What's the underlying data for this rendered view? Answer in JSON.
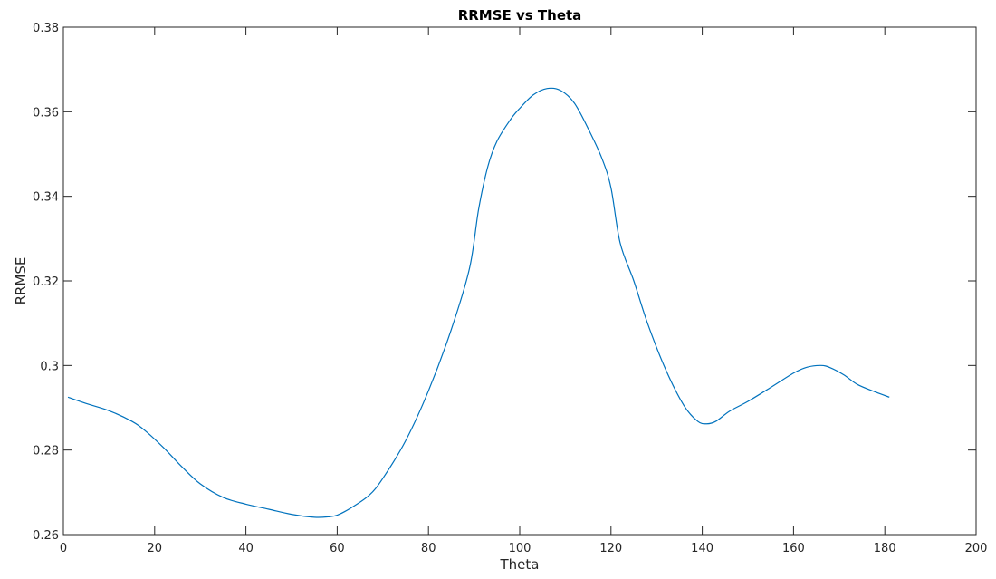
{
  "chart_data": {
    "type": "line",
    "title": "RRMSE vs Theta",
    "xlabel": "Theta",
    "ylabel": "RRMSE",
    "xlim": [
      0,
      200
    ],
    "ylim": [
      0.26,
      0.38
    ],
    "xticks": [
      0,
      20,
      40,
      60,
      80,
      100,
      120,
      140,
      160,
      180,
      200
    ],
    "xtick_labels": [
      "0",
      "20",
      "40",
      "60",
      "80",
      "100",
      "120",
      "140",
      "160",
      "180",
      "200"
    ],
    "yticks": [
      0.26,
      0.28,
      0.3,
      0.32,
      0.34,
      0.36,
      0.38
    ],
    "ytick_labels": [
      "0.26",
      "0.28",
      "0.3",
      "0.32",
      "0.34",
      "0.36",
      "0.38"
    ],
    "grid": false,
    "series": [
      {
        "color": "#0072bd",
        "x": [
          1,
          5,
          10,
          15,
          18,
          22,
          26,
          30,
          35,
          40,
          45,
          50,
          55,
          58,
          60,
          63,
          67,
          70,
          75,
          80,
          85,
          89,
          91,
          93,
          95,
          98,
          100,
          103,
          106,
          109,
          112,
          115,
          118,
          120,
          122,
          125,
          128,
          132,
          136,
          139,
          141,
          143,
          146,
          150,
          155,
          160,
          163,
          166,
          168,
          171,
          174,
          178,
          181
        ],
        "values": [
          0.2925,
          0.291,
          0.2893,
          0.2868,
          0.2845,
          0.2805,
          0.276,
          0.272,
          0.2688,
          0.2672,
          0.266,
          0.2648,
          0.2641,
          0.2642,
          0.2646,
          0.2663,
          0.2693,
          0.2733,
          0.2822,
          0.294,
          0.3085,
          0.323,
          0.337,
          0.347,
          0.353,
          0.3582,
          0.3608,
          0.364,
          0.3655,
          0.365,
          0.362,
          0.356,
          0.349,
          0.342,
          0.329,
          0.32,
          0.31,
          0.299,
          0.2905,
          0.2868,
          0.2862,
          0.2868,
          0.2892,
          0.2915,
          0.2948,
          0.2982,
          0.2996,
          0.3,
          0.2995,
          0.2978,
          0.2955,
          0.2937,
          0.2925
        ]
      }
    ]
  }
}
